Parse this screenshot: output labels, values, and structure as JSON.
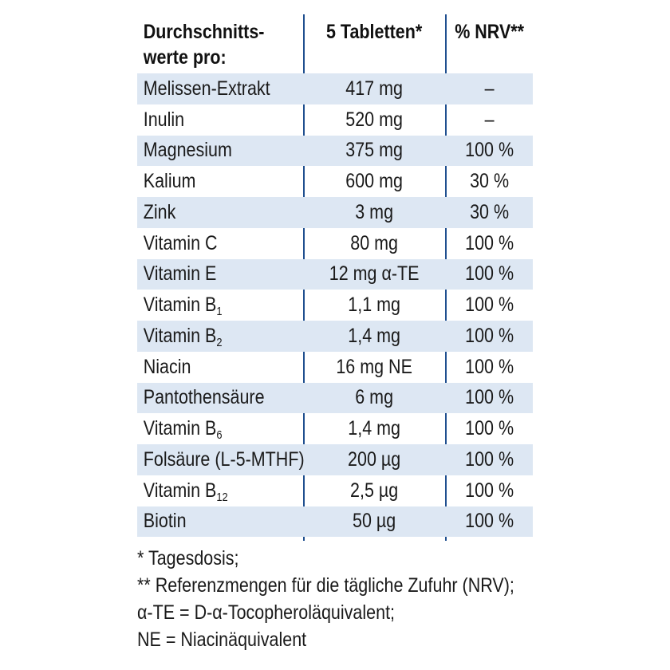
{
  "table": {
    "headers": {
      "name": "Durchschnitts-\nwerte pro:",
      "amount": "5 Tabletten*",
      "nrv": "% NRV**"
    },
    "rows": [
      {
        "name": "Melissen-Extrakt",
        "sub": "",
        "amount": "417 mg",
        "nrv": "–"
      },
      {
        "name": "Inulin",
        "sub": "",
        "amount": "520 mg",
        "nrv": "–"
      },
      {
        "name": "Magnesium",
        "sub": "",
        "amount": "375 mg",
        "nrv": "100 %"
      },
      {
        "name": "Kalium",
        "sub": "",
        "amount": "600 mg",
        "nrv": "30 %"
      },
      {
        "name": "Zink",
        "sub": "",
        "amount": "3 mg",
        "nrv": "30 %"
      },
      {
        "name": "Vitamin C",
        "sub": "",
        "amount": "80 mg",
        "nrv": "100 %"
      },
      {
        "name": "Vitamin E",
        "sub": "",
        "amount": "12 mg α-TE",
        "nrv": "100 %"
      },
      {
        "name": "Vitamin B",
        "sub": "1",
        "amount": "1,1 mg",
        "nrv": "100 %"
      },
      {
        "name": "Vitamin B",
        "sub": "2",
        "amount": "1,4 mg",
        "nrv": "100 %"
      },
      {
        "name": "Niacin",
        "sub": "",
        "amount": "16 mg NE",
        "nrv": "100 %"
      },
      {
        "name": "Pantothensäure",
        "sub": "",
        "amount": "6 mg",
        "nrv": "100 %"
      },
      {
        "name": "Vitamin B",
        "sub": "6",
        "amount": "1,4 mg",
        "nrv": "100 %"
      },
      {
        "name": "Folsäure (L-5-MTHF)",
        "sub": "",
        "amount": "200 µg",
        "nrv": "100 %"
      },
      {
        "name": "Vitamin B",
        "sub": "12",
        "amount": "2,5 µg",
        "nrv": "100 %"
      },
      {
        "name": "Biotin",
        "sub": "",
        "amount": "50 µg",
        "nrv": "100 %"
      }
    ]
  },
  "footnotes": [
    "* Tagesdosis;",
    "** Referenzmengen für die tägliche Zufuhr (NRV);",
    "α-TE = D-α-Tocopheroläquivalent;",
    "NE = Niacinäquivalent"
  ],
  "colors": {
    "row_shade": "#dde7f3",
    "divider": "#1f4f8f"
  }
}
